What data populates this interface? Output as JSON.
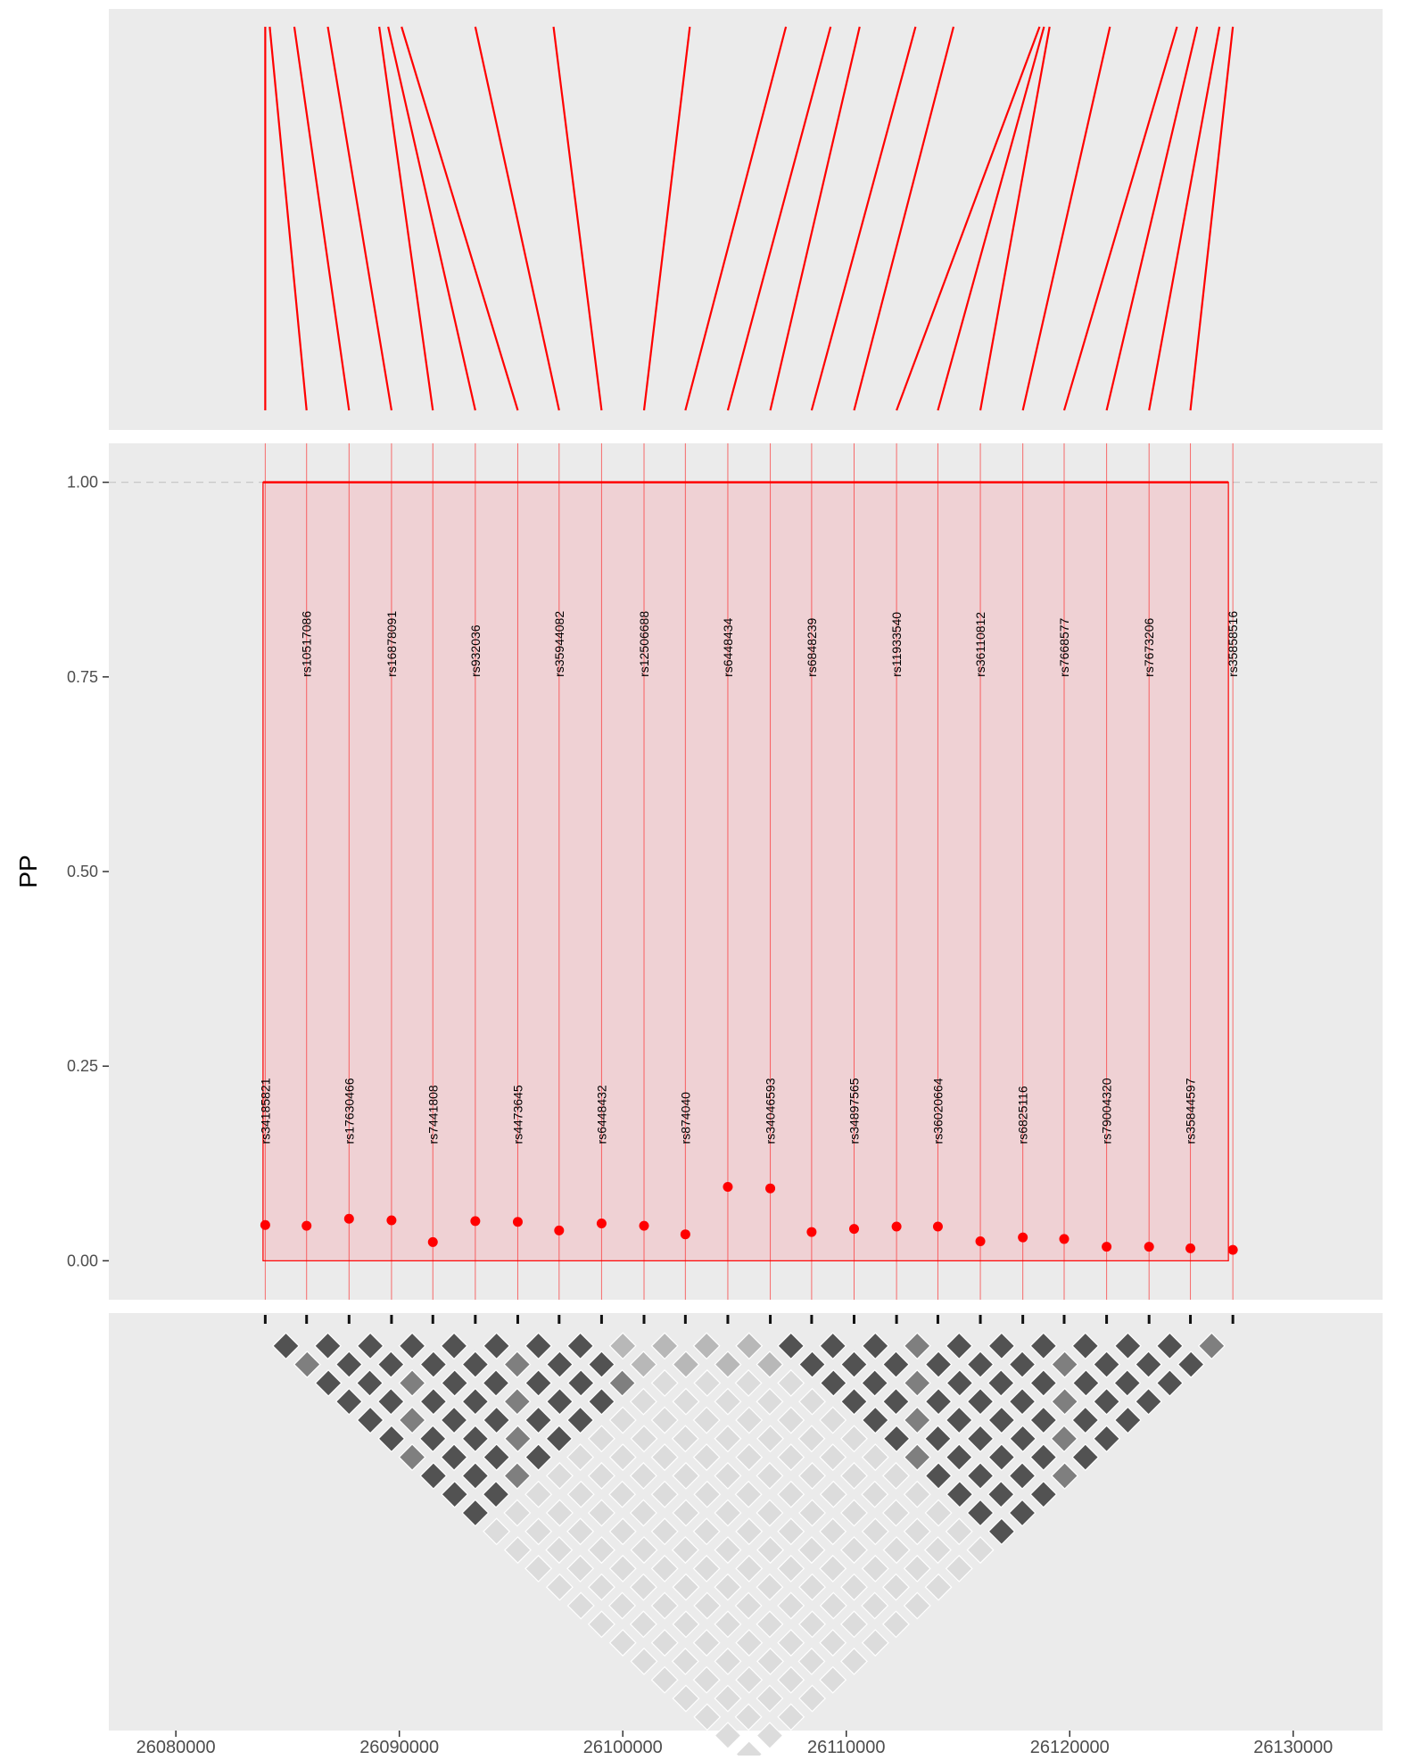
{
  "chart_data": {
    "type": "scatter",
    "title": "",
    "xlabel": "",
    "ylabel": "PP",
    "ylim": [
      -0.05,
      1.05
    ],
    "xlim": [
      26077000,
      26134000
    ],
    "x_ticks": [
      "26080000",
      "26090000",
      "26100000",
      "26110000",
      "26120000",
      "26130000"
    ],
    "x_tick_values": [
      26080000,
      26090000,
      26100000,
      26110000,
      26120000,
      26130000
    ],
    "y_ticks": [
      "0.00",
      "0.25",
      "0.50",
      "0.75",
      "1.00"
    ],
    "y_tick_values": [
      0,
      0.25,
      0.5,
      0.75,
      1
    ],
    "reference_line_y": 1.0,
    "credible_set": {
      "x_start": 26083900,
      "x_end": 26127100,
      "pp": 1.0
    },
    "snps": [
      {
        "id": "rs34185821",
        "pos": 26084000,
        "pp": 0.046,
        "label_row": "low"
      },
      {
        "id": "rs10517086",
        "pos": 26085850,
        "pp": 0.045,
        "label_row": "high"
      },
      {
        "id": "rs17630466",
        "pos": 26087750,
        "pp": 0.054,
        "label_row": "low"
      },
      {
        "id": "rs16878091",
        "pos": 26089650,
        "pp": 0.052,
        "label_row": "high"
      },
      {
        "id": "rs7441808",
        "pos": 26091500,
        "pp": 0.024,
        "label_row": "low"
      },
      {
        "id": "rs932036",
        "pos": 26093400,
        "pp": 0.051,
        "label_row": "high"
      },
      {
        "id": "rs4473645",
        "pos": 26095300,
        "pp": 0.05,
        "label_row": "low"
      },
      {
        "id": "rs35944082",
        "pos": 26097150,
        "pp": 0.039,
        "label_row": "high"
      },
      {
        "id": "rs6448432",
        "pos": 26099050,
        "pp": 0.048,
        "label_row": "low"
      },
      {
        "id": "rs12506688",
        "pos": 26100950,
        "pp": 0.045,
        "label_row": "high"
      },
      {
        "id": "rs874040",
        "pos": 26102800,
        "pp": 0.034,
        "label_row": "low"
      },
      {
        "id": "rs6448434",
        "pos": 26104700,
        "pp": 0.095,
        "label_row": "high"
      },
      {
        "id": "rs34046593",
        "pos": 26106600,
        "pp": 0.093,
        "label_row": "low"
      },
      {
        "id": "rs6848239",
        "pos": 26108450,
        "pp": 0.037,
        "label_row": "high"
      },
      {
        "id": "rs34897565",
        "pos": 26110350,
        "pp": 0.041,
        "label_row": "low"
      },
      {
        "id": "rs11933540",
        "pos": 26112250,
        "pp": 0.044,
        "label_row": "high"
      },
      {
        "id": "rs36020664",
        "pos": 26114100,
        "pp": 0.044,
        "label_row": "low"
      },
      {
        "id": "rs36110812",
        "pos": 26116000,
        "pp": 0.025,
        "label_row": "high"
      },
      {
        "id": "rs6825116",
        "pos": 26117900,
        "pp": 0.03,
        "label_row": "low"
      },
      {
        "id": "rs7668577",
        "pos": 26119750,
        "pp": 0.028,
        "label_row": "high"
      },
      {
        "id": "rs79004320",
        "pos": 26121650,
        "pp": 0.018,
        "label_row": "low"
      },
      {
        "id": "rs7673206",
        "pos": 26123550,
        "pp": 0.018,
        "label_row": "high"
      },
      {
        "id": "rs35844597",
        "pos": 26125400,
        "pp": 0.016,
        "label_row": "low"
      },
      {
        "id": "rs35858516",
        "pos": 26127300,
        "pp": 0.014,
        "label_row": "high"
      }
    ],
    "genome_positions_top": [
      26084000,
      26084200,
      26085300,
      26086800,
      26089100,
      26089500,
      26090100,
      26093400,
      26096900,
      26103000,
      26107300,
      26109300,
      26110600,
      26113100,
      26114800,
      26118650,
      26118850,
      26119100,
      26121800,
      26124800,
      26125700,
      26126700,
      26127300
    ],
    "ld_colors": {
      "high": "#525252",
      "medium": "#7f7f7f",
      "low": "#b8b8b8",
      "very_low": "#dcdcdc"
    },
    "colors": {
      "accent": "#ff0000",
      "panel_bg": "#ebebeb",
      "band_fill": "#f0c8cc"
    }
  }
}
